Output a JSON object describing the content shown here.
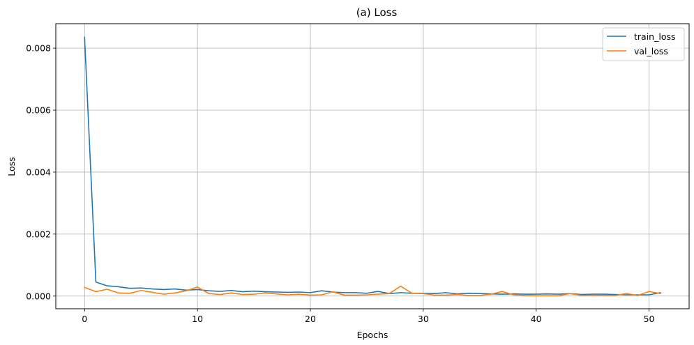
{
  "chart_data": {
    "type": "line",
    "title": "(a) Loss",
    "xlabel": "Epochs",
    "ylabel": "Loss",
    "xlim": [
      -2.55,
      53.55
    ],
    "ylim": [
      -0.00041,
      0.00879
    ],
    "x_ticks": [
      0,
      10,
      20,
      30,
      40,
      50
    ],
    "y_ticks": [
      0.0,
      0.002,
      0.004,
      0.006,
      0.008
    ],
    "y_tick_labels": [
      "0.000",
      "0.002",
      "0.004",
      "0.006",
      "0.008"
    ],
    "grid": true,
    "legend_position": "top-right",
    "x": [
      0,
      1,
      2,
      3,
      4,
      5,
      6,
      7,
      8,
      9,
      10,
      11,
      12,
      13,
      14,
      15,
      16,
      17,
      18,
      19,
      20,
      21,
      22,
      23,
      24,
      25,
      26,
      27,
      28,
      29,
      30,
      31,
      32,
      33,
      34,
      35,
      36,
      37,
      38,
      39,
      40,
      41,
      42,
      43,
      44,
      45,
      46,
      47,
      48,
      49,
      50,
      51
    ],
    "series": [
      {
        "name": "train_loss",
        "color": "#1f77b4",
        "values": [
          0.00835,
          0.00045,
          0.00033,
          0.0003,
          0.00025,
          0.00026,
          0.00023,
          0.00021,
          0.00023,
          0.00019,
          0.00021,
          0.00017,
          0.00015,
          0.00018,
          0.00014,
          0.00016,
          0.00014,
          0.00013,
          0.00012,
          0.00013,
          0.00011,
          0.00017,
          0.00013,
          0.00011,
          0.00011,
          9e-05,
          0.00015,
          8e-05,
          0.00011,
          9e-05,
          9e-05,
          8e-05,
          0.00011,
          7e-05,
          9e-05,
          8e-05,
          7e-05,
          6e-05,
          7e-05,
          6e-05,
          6e-05,
          7e-05,
          6e-05,
          8e-05,
          5e-05,
          6e-05,
          6e-05,
          5e-05,
          4e-05,
          4e-05,
          4e-05,
          0.00011
        ]
      },
      {
        "name": "val_loss",
        "color": "#ff7f0e",
        "values": [
          0.00028,
          0.00014,
          0.00022,
          0.0001,
          9e-05,
          0.00018,
          0.00012,
          6e-05,
          0.0001,
          0.00017,
          0.00029,
          8e-05,
          5e-05,
          0.0001,
          5e-05,
          6e-05,
          0.0001,
          7e-05,
          4e-05,
          6e-05,
          3e-05,
          4e-05,
          0.00014,
          3e-05,
          3e-05,
          4e-05,
          6e-05,
          8e-05,
          0.00032,
          9e-05,
          8e-05,
          3e-05,
          3e-05,
          5e-05,
          2e-05,
          2e-05,
          6e-05,
          0.00015,
          4e-05,
          2e-05,
          1e-05,
          1e-05,
          1e-05,
          8e-05,
          2e-05,
          3e-05,
          2e-05,
          2e-05,
          8e-05,
          2e-05,
          0.00015,
          8e-05
        ]
      }
    ]
  }
}
